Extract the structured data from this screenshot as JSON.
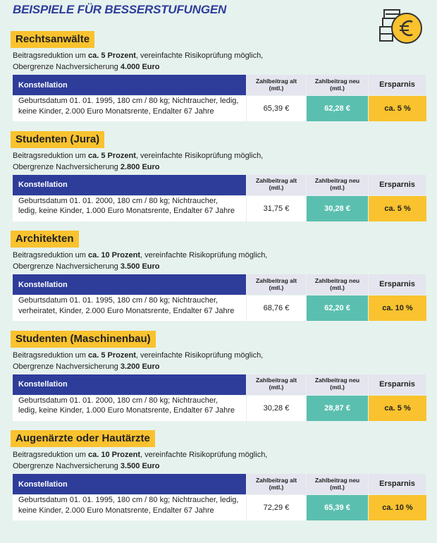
{
  "title": "BEISPIELE FÜR BESSERSTUFUNGEN",
  "common": {
    "reduction_prefix": "Beitragsreduktion um",
    "reduction_suffix": ", vereinfachte Risikoprüfung möglich,",
    "limit_prefix": "Obergrenze Nachversicherung",
    "columns": [
      "Konstellation",
      "Zahlbeitrag alt (mtl.)",
      "Zahlbeitrag neu (mtl.)",
      "Ersparnis"
    ]
  },
  "sections": [
    {
      "heading": "Rechtsanwälte",
      "reduction": "ca. 5 Prozent",
      "limit": "4.000 Euro",
      "constellation": [
        "Geburtsdatum 01. 01. 1995, 180 cm / 80 kg; Nichtraucher, ledig,",
        "keine Kinder, 2.000 Euro Monatsrente, Endalter 67 Jahre"
      ],
      "old": "65,39 €",
      "new": "62,28 €",
      "saving": "ca. 5 %"
    },
    {
      "heading": "Studenten (Jura)",
      "reduction": "ca. 5 Prozent",
      "limit": "2.800 Euro",
      "constellation": [
        "Geburtsdatum 01. 01. 2000, 180 cm / 80 kg; Nichtraucher,",
        "ledig, keine Kinder, 1.000 Euro Monatsrente, Endalter 67 Jahre"
      ],
      "old": "31,75 €",
      "new": "30,28 €",
      "saving": "ca. 5 %"
    },
    {
      "heading": "Architekten",
      "reduction": "ca. 10 Prozent",
      "limit": "3.500 Euro",
      "constellation": [
        "Geburtsdatum 01. 01. 1995, 180 cm / 80 kg; Nichtraucher,",
        "verheiratet, Kinder, 2.000 Euro Monatsrente, Endalter 67 Jahre"
      ],
      "old": "68,76 €",
      "new": "62,20 €",
      "saving": "ca. 10 %"
    },
    {
      "heading": "Studenten (Maschinenbau)",
      "reduction": "ca. 5 Prozent",
      "limit": "3.200 Euro",
      "constellation": [
        "Geburtsdatum 01. 01. 2000, 180 cm / 80 kg; Nichtraucher,",
        "ledig, keine Kinder, 1.000 Euro Monatsrente, Endalter 67 Jahre"
      ],
      "old": "30,28 €",
      "new": "28,87 €",
      "saving": "ca. 5 %"
    },
    {
      "heading": "Augenärzte oder Hautärzte",
      "reduction": "ca. 10 Prozent",
      "limit": "3.500 Euro",
      "constellation": [
        "Geburtsdatum 01. 01. 1995, 180 cm / 80 kg; Nichtraucher, ledig,",
        "keine Kinder, 2.000 Euro Monatsrente, Endalter 67 Jahre"
      ],
      "old": "72,29 €",
      "new": "65,39 €",
      "saving": "ca. 10 %"
    }
  ]
}
